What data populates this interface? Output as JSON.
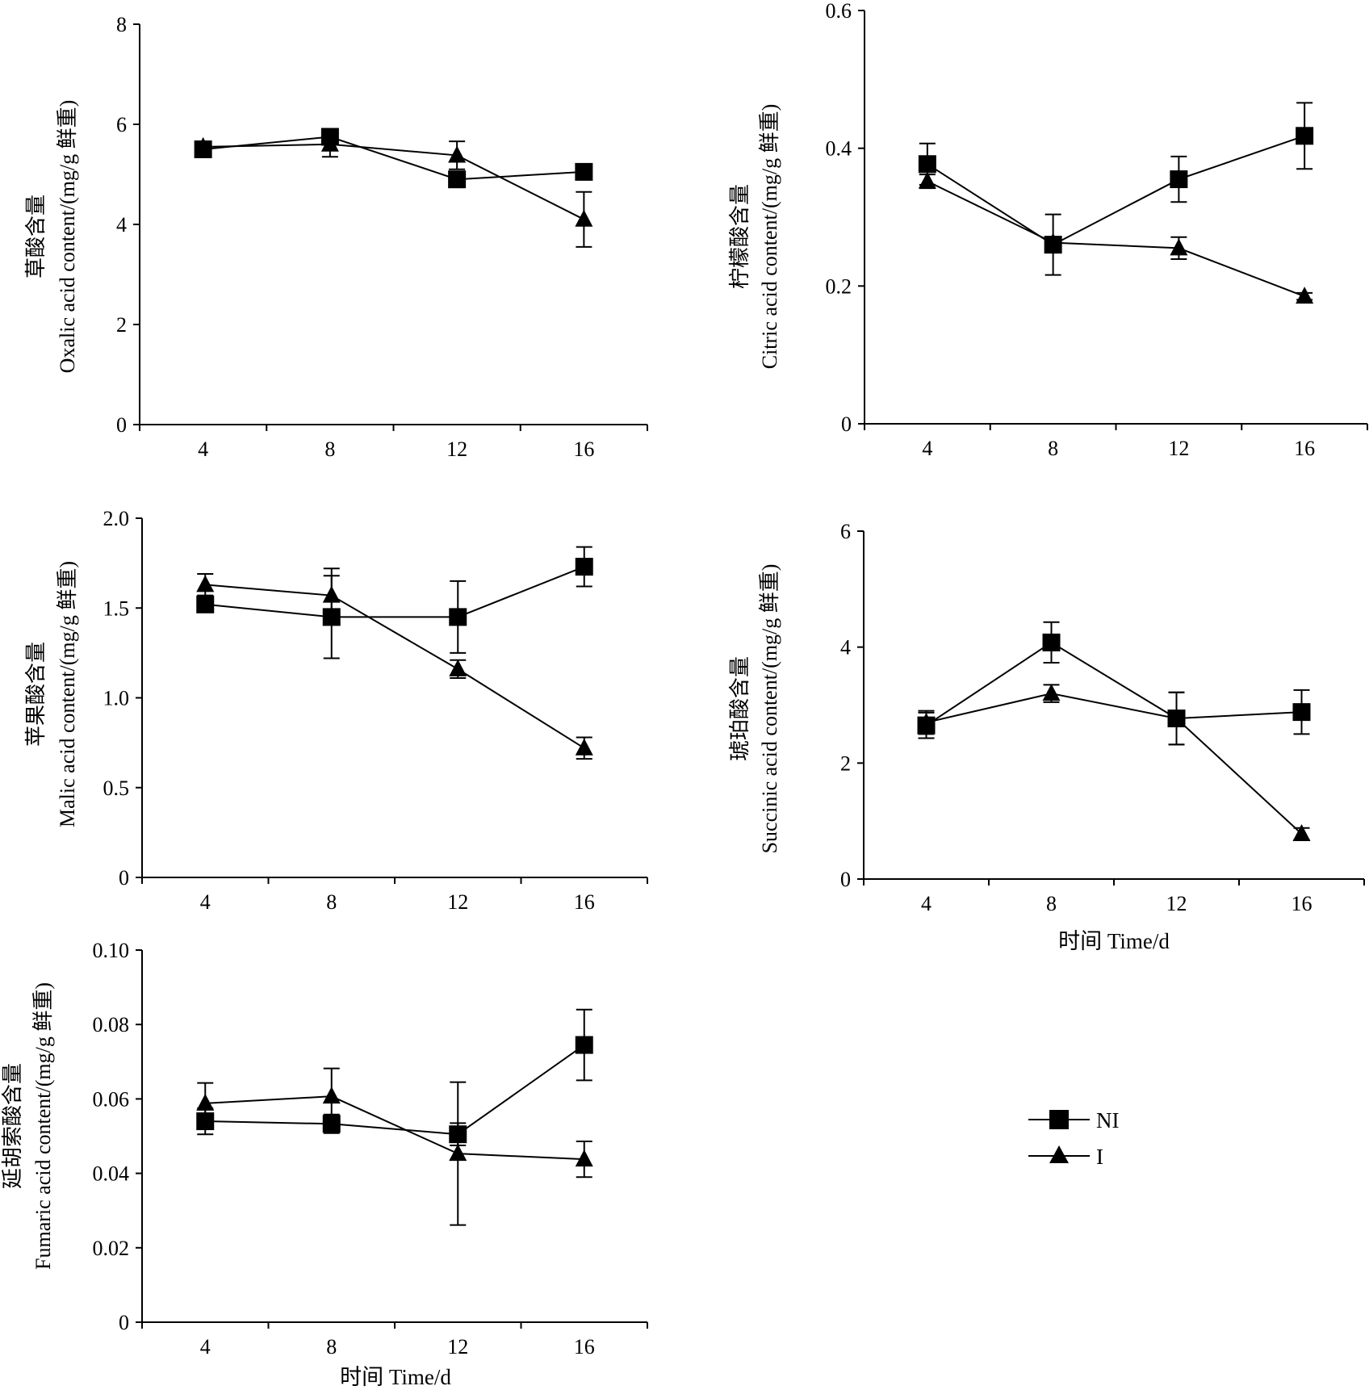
{
  "chart_data": [
    {
      "type": "line",
      "title": "",
      "ylabel_cn": "草酸含量",
      "ylabel_en": "Oxalic acid content/(mg/g 鲜重)",
      "xlabel": "",
      "x": [
        4,
        8,
        12,
        16
      ],
      "xticks": [
        "4",
        "8",
        "12",
        "16"
      ],
      "ylim": [
        0,
        8
      ],
      "yticks": [
        "0",
        "2",
        "4",
        "6",
        "8"
      ],
      "series": [
        {
          "name": "NI",
          "marker": "square",
          "values": [
            5.5,
            5.75,
            4.9,
            5.05
          ],
          "err": [
            0.1,
            0.15,
            0.12,
            0.12
          ]
        },
        {
          "name": "I",
          "marker": "triangle",
          "values": [
            5.55,
            5.6,
            5.38,
            4.1
          ],
          "err": [
            0.1,
            0.25,
            0.28,
            0.55
          ]
        }
      ]
    },
    {
      "type": "line",
      "title": "",
      "ylabel_cn": "柠檬酸含量",
      "ylabel_en": "Citric acid content/(mg/g 鲜重)",
      "xlabel": "",
      "x": [
        4,
        8,
        12,
        16
      ],
      "xticks": [
        "4",
        "8",
        "12",
        "16"
      ],
      "ylim": [
        0,
        0.6
      ],
      "yticks": [
        "0",
        "0.2",
        "0.4",
        "0.6"
      ],
      "series": [
        {
          "name": "NI",
          "marker": "square",
          "values": [
            0.377,
            0.26,
            0.355,
            0.418
          ],
          "err": [
            0.03,
            0.044,
            0.033,
            0.048
          ]
        },
        {
          "name": "I",
          "marker": "triangle",
          "values": [
            0.352,
            0.263,
            0.255,
            0.185
          ],
          "err": [
            0.01,
            0.008,
            0.016,
            0.005
          ]
        }
      ]
    },
    {
      "type": "line",
      "title": "",
      "ylabel_cn": "苹果酸含量",
      "ylabel_en": "Malic acid content/(mg/g 鲜重)",
      "xlabel": "",
      "x": [
        4,
        8,
        12,
        16
      ],
      "xticks": [
        "4",
        "8",
        "12",
        "16"
      ],
      "ylim": [
        0,
        2.0
      ],
      "yticks": [
        "0",
        "0.5",
        "1.0",
        "1.5",
        "2.0"
      ],
      "series": [
        {
          "name": "NI",
          "marker": "square",
          "values": [
            1.52,
            1.45,
            1.45,
            1.73
          ],
          "err": [
            0.04,
            0.23,
            0.2,
            0.11
          ]
        },
        {
          "name": "I",
          "marker": "triangle",
          "values": [
            1.63,
            1.57,
            1.16,
            0.72
          ],
          "err": [
            0.06,
            0.15,
            0.05,
            0.06
          ]
        }
      ]
    },
    {
      "type": "line",
      "title": "",
      "ylabel_cn": "琥珀酸含量",
      "ylabel_en": "Succinic acid content/(mg/g 鲜重)",
      "xlabel": "时间 Time/d",
      "x": [
        4,
        8,
        12,
        16
      ],
      "xticks": [
        "4",
        "8",
        "12",
        "16"
      ],
      "ylim": [
        0,
        6
      ],
      "yticks": [
        "0",
        "2",
        "4",
        "6"
      ],
      "series": [
        {
          "name": "NI",
          "marker": "square",
          "values": [
            2.65,
            4.08,
            2.77,
            2.88
          ],
          "err": [
            0.22,
            0.35,
            0.45,
            0.38
          ]
        },
        {
          "name": "I",
          "marker": "triangle",
          "values": [
            2.7,
            3.2,
            2.77,
            0.78
          ],
          "err": [
            0.2,
            0.15,
            0.45,
            0.1
          ]
        }
      ]
    },
    {
      "type": "line",
      "title": "",
      "ylabel_cn": "延胡索酸含量",
      "ylabel_en": "Fumaric acid content/(mg/g 鲜重)",
      "xlabel": "时间 Time/d",
      "x": [
        4,
        8,
        12,
        16
      ],
      "xticks": [
        "4",
        "8",
        "12",
        "16"
      ],
      "ylim": [
        0,
        0.1
      ],
      "yticks": [
        "0",
        "0.02",
        "0.04",
        "0.06",
        "0.08",
        "0.10"
      ],
      "series": [
        {
          "name": "NI",
          "marker": "square",
          "values": [
            0.054,
            0.0533,
            0.0505,
            0.0745
          ],
          "err": [
            0.0035,
            0.0025,
            0.003,
            0.0095
          ]
        },
        {
          "name": "I",
          "marker": "triangle",
          "values": [
            0.0588,
            0.0607,
            0.0453,
            0.0438
          ],
          "err": [
            0.0055,
            0.0075,
            0.0192,
            0.0048
          ]
        }
      ]
    }
  ],
  "legend": {
    "position": "bottom-right",
    "items": [
      {
        "label": "NI",
        "marker": "square"
      },
      {
        "label": "I",
        "marker": "triangle"
      }
    ]
  }
}
